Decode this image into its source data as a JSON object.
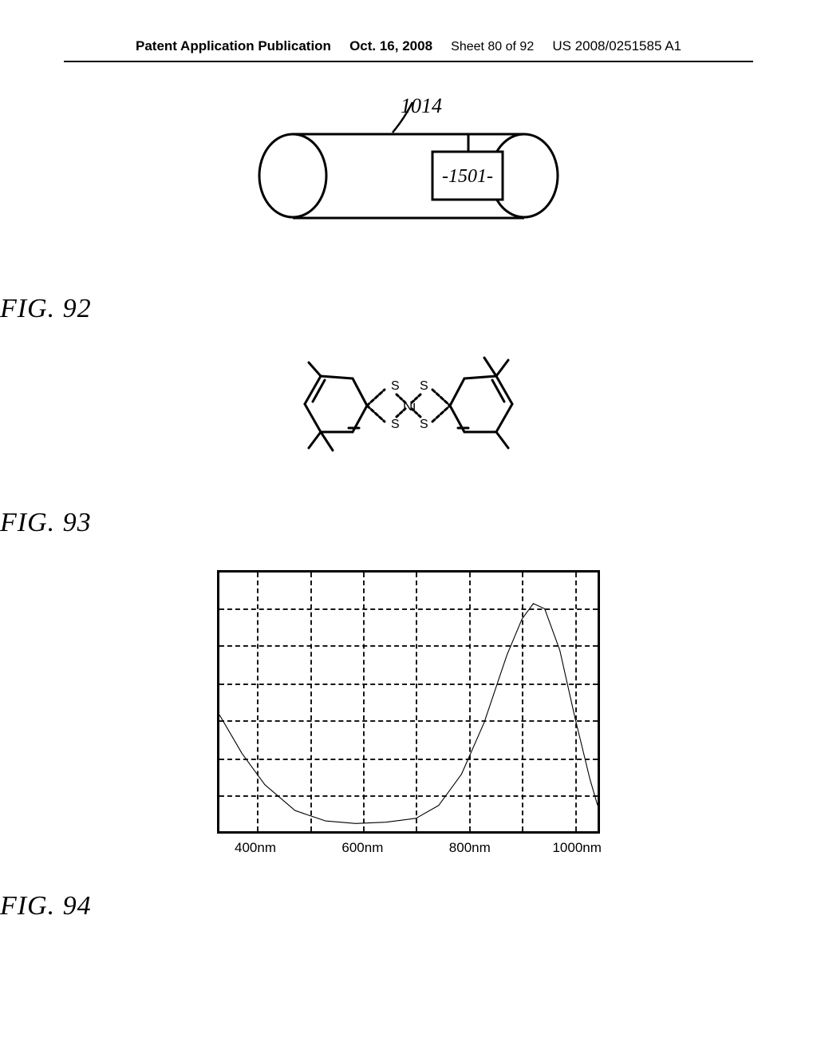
{
  "header": {
    "publication_type": "Patent Application Publication",
    "date": "Oct. 16, 2008",
    "sheet": "Sheet 80 of 92",
    "pub_number": "US 2008/0251585 A1"
  },
  "fig92": {
    "label": "FIG. 92",
    "ref_top": "1014",
    "box_label": "-1501-"
  },
  "fig93": {
    "label": "FIG. 93",
    "center_atom": "Ni",
    "ligand_atom": "S"
  },
  "fig94": {
    "label": "FIG. 94",
    "type": "line",
    "xlim": [
      350,
      1050
    ],
    "ylim": [
      0,
      7
    ],
    "xtick_labels": [
      "400nm",
      "600nm",
      "800nm",
      "1000nm"
    ],
    "xtick_positions_pct": [
      10,
      38,
      66,
      94
    ],
    "h_grid_pct": [
      14,
      28,
      43,
      57,
      72,
      86
    ],
    "v_grid_pct": [
      10,
      24,
      38,
      52,
      66,
      80,
      94
    ],
    "curve_points": [
      [
        0,
        55
      ],
      [
        6,
        70
      ],
      [
        12,
        82
      ],
      [
        20,
        92
      ],
      [
        28,
        96
      ],
      [
        36,
        97
      ],
      [
        44,
        96.5
      ],
      [
        52,
        95
      ],
      [
        58,
        90
      ],
      [
        64,
        78
      ],
      [
        70,
        58
      ],
      [
        76,
        32
      ],
      [
        80,
        18
      ],
      [
        83,
        12
      ],
      [
        86,
        14
      ],
      [
        90,
        30
      ],
      [
        94,
        56
      ],
      [
        98,
        80
      ],
      [
        100,
        90
      ]
    ],
    "line_width": 3.5,
    "line_color": "#000000",
    "grid_color": "#000000",
    "border_color": "#000000",
    "background_color": "#ffffff",
    "tick_fontsize": 17
  }
}
